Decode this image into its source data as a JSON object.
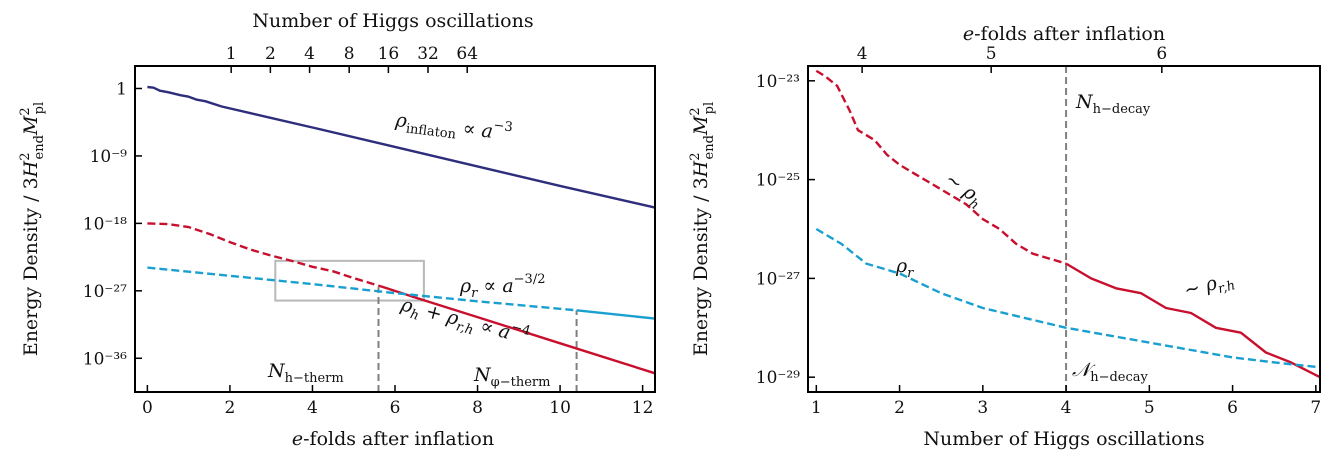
{
  "chart_data": [
    {
      "type": "line",
      "xlabel": "e-folds after inflation",
      "ylabel": "Energy Density / 3H²_end M²_pl",
      "top_xlabel": "Number of Higgs oscillations",
      "xlim": [
        -0.3,
        12.3
      ],
      "ylim_log10": [
        -40.5,
        3
      ],
      "xticks": [
        0,
        2,
        4,
        6,
        8,
        10,
        12
      ],
      "yticks_log10": [
        0,
        -9,
        -18,
        -27,
        -36
      ],
      "ytick_labels": [
        "1",
        "10⁻⁹",
        "10⁻¹⁸",
        "10⁻²⁷",
        "10⁻³⁶"
      ],
      "top_ticks": [
        {
          "label": "1",
          "x": 2.03
        },
        {
          "label": "2",
          "x": 2.98
        },
        {
          "label": "4",
          "x": 3.93
        },
        {
          "label": "8",
          "x": 4.89
        },
        {
          "label": "16",
          "x": 5.84
        },
        {
          "label": "32",
          "x": 6.8
        },
        {
          "label": "64",
          "x": 7.75
        }
      ],
      "series": [
        {
          "name": "inflaton",
          "color": "#2e2e7c",
          "dashed": false,
          "x": [
            0,
            0.15,
            0.3,
            0.5,
            0.8,
            1.0,
            1.2,
            1.4,
            1.8,
            2.5,
            4,
            6,
            8,
            10,
            12.3
          ],
          "y_log10": [
            0.2,
            0.1,
            -0.3,
            -0.5,
            -0.9,
            -1.1,
            -1.5,
            -1.7,
            -2.4,
            -3.3,
            -5.2,
            -7.8,
            -10.4,
            -13.0,
            -15.9
          ]
        },
        {
          "name": "rho_h",
          "color": "#c8102e",
          "dashed": true,
          "x": [
            0,
            0.5,
            1.0,
            1.5,
            2.0,
            2.5,
            3.0,
            3.5,
            4.0,
            4.5,
            5.0,
            5.6
          ],
          "y_log10": [
            -18,
            -18.1,
            -18.5,
            -19.4,
            -20.5,
            -21.5,
            -22.3,
            -23.0,
            -23.8,
            -24.4,
            -25.3,
            -26.3
          ]
        },
        {
          "name": "rho_h_plus_rho_rh",
          "color": "#c8102e",
          "dashed": false,
          "x": [
            5.6,
            6.5,
            8,
            10,
            12.3
          ],
          "y_log10": [
            -26.3,
            -27.9,
            -30.5,
            -34.0,
            -38.0
          ]
        },
        {
          "name": "rho_r_dashed",
          "color": "#1aa0d0",
          "dashed": true,
          "x": [
            0,
            2,
            4,
            6,
            8,
            10.4
          ],
          "y_log10": [
            -23.9,
            -25.0,
            -26.1,
            -27.3,
            -28.4,
            -29.6
          ]
        },
        {
          "name": "rho_r_solid",
          "color": "#1aa0d0",
          "dashed": false,
          "x": [
            10.4,
            12.3
          ],
          "y_log10": [
            -29.6,
            -30.7
          ]
        }
      ],
      "vlines": [
        {
          "x": 5.6,
          "y_from_log10": -40.5,
          "y_to_log10": -26.5,
          "label": "N",
          "sub": "h−therm"
        },
        {
          "x": 10.4,
          "y_from_log10": -40.5,
          "y_to_log10": -29.6,
          "label": "N",
          "sub": "φ−therm"
        }
      ],
      "inset_box": {
        "x0": 3.1,
        "x1": 6.7,
        "y0_log10": -23.0,
        "y1_log10": -28.3
      },
      "annotations": [
        {
          "id": "inflaton",
          "text": "ρ",
          "sub": "inflaton",
          "rest": " ∝ a",
          "sup": "−3"
        },
        {
          "id": "rho_r",
          "text": "ρ",
          "sub": "r",
          "rest": " ∝ a",
          "sup": "−3/2"
        },
        {
          "id": "rho_h",
          "text": "ρ",
          "sub": "h",
          "mid": " + ρ",
          "sub2": "r,h",
          "rest": " ∝ a",
          "sup": "−4"
        }
      ]
    },
    {
      "type": "line",
      "xlabel": "Number of Higgs oscillations",
      "ylabel": "Energy Density / 3H²_end M²_pl",
      "top_xlabel": "e-folds after inflation",
      "xlim": [
        0.9,
        7.05
      ],
      "ylim_log10": [
        -29.3,
        -22.7
      ],
      "xticks": [
        1,
        2,
        3,
        4,
        5,
        6,
        7
      ],
      "yticks_log10": [
        -23,
        -25,
        -27,
        -29
      ],
      "ytick_labels": [
        "10⁻²³",
        "10⁻²⁵",
        "10⁻²⁷",
        "10⁻²⁹"
      ],
      "top_ticks": [
        {
          "label": "4",
          "x": 1.55
        },
        {
          "label": "5",
          "x": 3.1
        },
        {
          "label": "6",
          "x": 5.15
        }
      ],
      "series": [
        {
          "name": "rho_h_dashed",
          "color": "#c8102e",
          "dashed": true,
          "x": [
            1.0,
            1.1,
            1.25,
            1.4,
            1.5,
            1.7,
            1.85,
            2.0,
            2.2,
            2.4,
            2.6,
            2.8,
            3.0,
            3.2,
            3.4,
            3.6,
            3.8,
            4.0
          ],
          "y_log10": [
            -22.8,
            -22.9,
            -23.1,
            -23.6,
            -24.0,
            -24.2,
            -24.5,
            -24.7,
            -24.9,
            -25.1,
            -25.3,
            -25.5,
            -25.8,
            -26.0,
            -26.3,
            -26.5,
            -26.6,
            -26.7
          ]
        },
        {
          "name": "rho_rh_solid",
          "color": "#c8102e",
          "dashed": false,
          "x": [
            4.0,
            4.3,
            4.6,
            4.9,
            5.2,
            5.5,
            5.8,
            6.1,
            6.4,
            6.7,
            7.05
          ],
          "y_log10": [
            -26.7,
            -27.0,
            -27.2,
            -27.3,
            -27.6,
            -27.7,
            -28.0,
            -28.1,
            -28.5,
            -28.7,
            -29.0
          ]
        },
        {
          "name": "rho_r",
          "color": "#1aa0d0",
          "dashed": true,
          "x": [
            1.0,
            1.3,
            1.6,
            1.8,
            2.0,
            2.5,
            3.0,
            3.5,
            4.0,
            4.5,
            5.0,
            5.5,
            6.0,
            6.5,
            7.05
          ],
          "y_log10": [
            -26.0,
            -26.3,
            -26.7,
            -26.8,
            -26.9,
            -27.3,
            -27.6,
            -27.8,
            -28.0,
            -28.15,
            -28.3,
            -28.45,
            -28.6,
            -28.7,
            -28.8
          ]
        }
      ],
      "vlines": [
        {
          "x": 4.0,
          "y_from_log10": -29.3,
          "y_to_log10": -22.7,
          "label": "N",
          "sub": "h−decay"
        }
      ],
      "annotations": [
        {
          "id": "rho_h",
          "text": "∼ ρ",
          "sub": "h"
        },
        {
          "id": "rho_r",
          "text": "ρ",
          "sub": "r"
        },
        {
          "id": "rho_rh",
          "text": "∼ ρ",
          "sub": "r,h"
        },
        {
          "id": "n_decay_top",
          "text": "N",
          "sub": "h−decay"
        },
        {
          "id": "n_decay_bottom",
          "text": "N",
          "sub": "h−decay"
        }
      ]
    }
  ]
}
